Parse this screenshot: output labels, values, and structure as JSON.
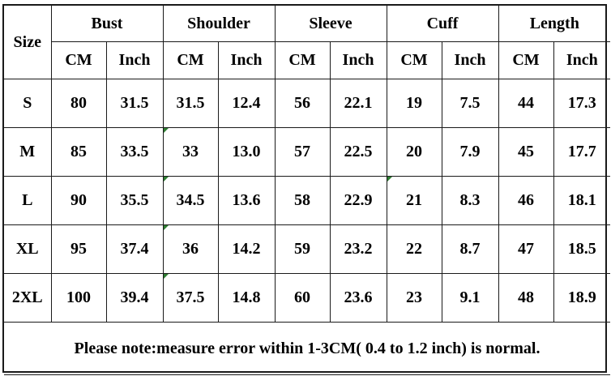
{
  "table": {
    "size_header": "Size",
    "groups": [
      "Bust",
      "Shoulder",
      "Sleeve",
      "Cuff",
      "Length"
    ],
    "unit_cm": "CM",
    "unit_inch": "Inch",
    "rows": [
      {
        "size": "S",
        "values": [
          "80",
          "31.5",
          "31.5",
          "12.4",
          "56",
          "22.1",
          "19",
          "7.5",
          "44",
          "17.3"
        ]
      },
      {
        "size": "M",
        "values": [
          "85",
          "33.5",
          "33",
          "13.0",
          "57",
          "22.5",
          "20",
          "7.9",
          "45",
          "17.7"
        ]
      },
      {
        "size": "L",
        "values": [
          "90",
          "35.5",
          "34.5",
          "13.6",
          "58",
          "22.9",
          "21",
          "8.3",
          "46",
          "18.1"
        ]
      },
      {
        "size": "XL",
        "values": [
          "95",
          "37.4",
          "36",
          "14.2",
          "59",
          "23.2",
          "22",
          "8.7",
          "47",
          "18.5"
        ]
      },
      {
        "size": "2XL",
        "values": [
          "100",
          "39.4",
          "37.5",
          "14.8",
          "60",
          "23.6",
          "23",
          "9.1",
          "48",
          "18.9"
        ]
      }
    ],
    "note": "Please note:measure error within 1-3CM( 0.4 to 1.2 inch) is normal."
  },
  "colors": {
    "border": "#1a1a1a",
    "corner_marker": "#2e7d32",
    "background": "#ffffff"
  }
}
